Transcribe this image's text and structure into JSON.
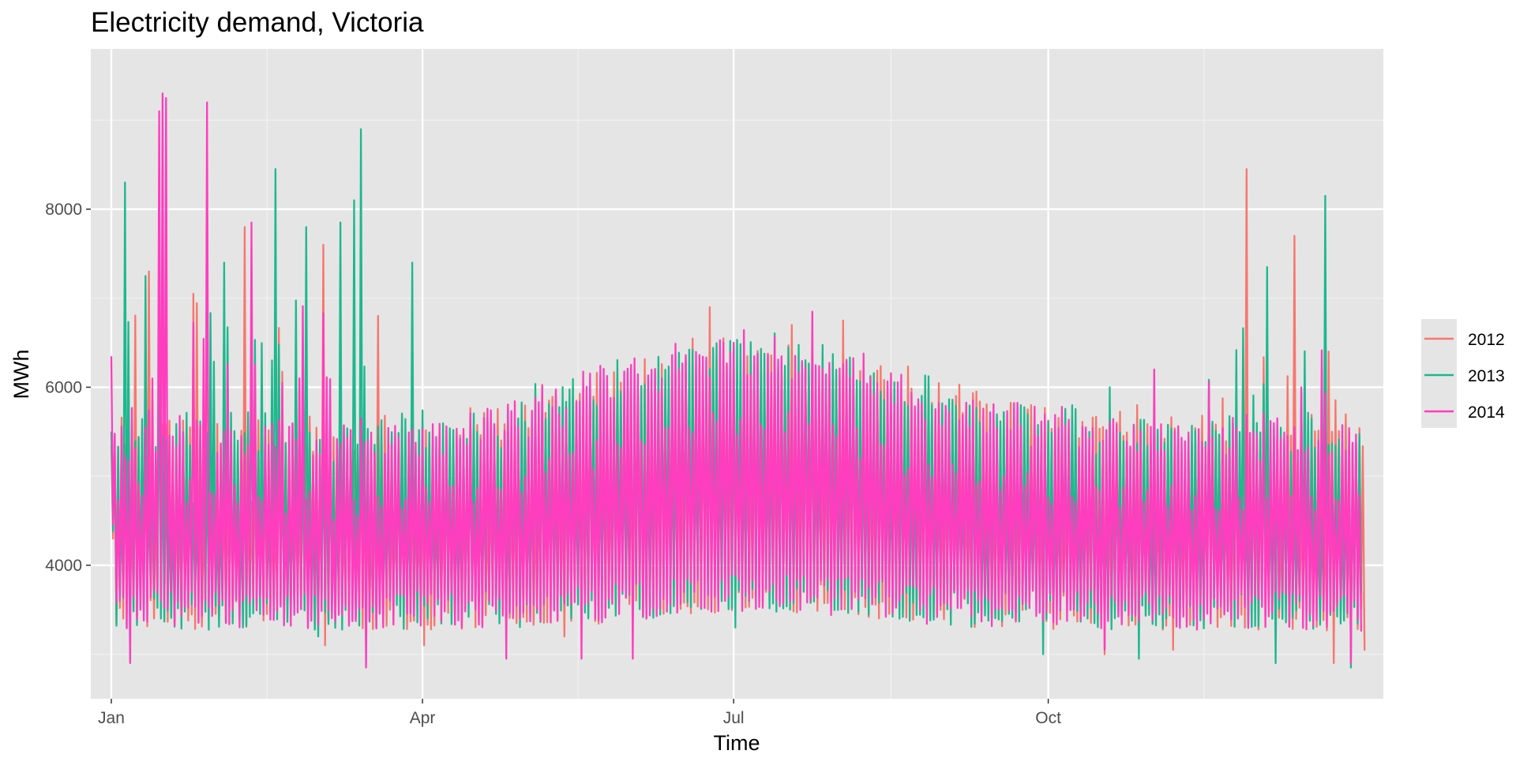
{
  "chart_data": {
    "type": "line",
    "title": "Electricity demand, Victoria",
    "xlabel": "Time",
    "ylabel": "MWh",
    "x_axis": {
      "unit": "day of year",
      "range": [
        -6,
        372
      ],
      "ticks": [
        {
          "label": "Jan",
          "value": 0
        },
        {
          "label": "Apr",
          "value": 91
        },
        {
          "label": "Jul",
          "value": 182
        },
        {
          "label": "Oct",
          "value": 274
        }
      ],
      "minor_breaks": [
        45.5,
        136.5,
        228,
        319.5
      ]
    },
    "y_axis": {
      "range": [
        2500,
        9800
      ],
      "ticks": [
        4000,
        6000,
        8000
      ],
      "minor_breaks": [
        3000,
        5000,
        7000,
        9000
      ]
    },
    "grid": true,
    "legend": {
      "position": "right",
      "entries": [
        "2012",
        "2013",
        "2014"
      ]
    },
    "series": [
      {
        "name": "2012",
        "color": "#F8766D",
        "frequency": "daily (daily min and max shown)",
        "points_per_day": 2,
        "spikes": [
          [
            11,
            7300
          ],
          [
            24,
            7050
          ],
          [
            28,
            8050
          ],
          [
            39,
            7800
          ],
          [
            62,
            7600
          ],
          [
            78,
            6800
          ],
          [
            175,
            6900
          ],
          [
            199,
            6700
          ],
          [
            214,
            6750
          ],
          [
            300,
            5800
          ],
          [
            332,
            8450
          ],
          [
            346,
            7700
          ],
          [
            356,
            6400
          ]
        ],
        "lows": [
          [
            3,
            3400
          ],
          [
            62,
            3100
          ],
          [
            91,
            3100
          ],
          [
            132,
            3200
          ],
          [
            290,
            3000
          ],
          [
            310,
            3050
          ],
          [
            357,
            2900
          ],
          [
            366,
            3050
          ]
        ],
        "end": [
          366,
          3700
        ]
      },
      {
        "name": "2013",
        "color": "#1DB88E",
        "frequency": "daily (daily min and max shown)",
        "points_per_day": 2,
        "spikes": [
          [
            4,
            8300
          ],
          [
            10,
            7250
          ],
          [
            33,
            7400
          ],
          [
            48,
            8450
          ],
          [
            57,
            7800
          ],
          [
            67,
            7850
          ],
          [
            71,
            8100
          ],
          [
            73,
            8900
          ],
          [
            88,
            7400
          ],
          [
            292,
            6000
          ],
          [
            338,
            7350
          ],
          [
            355,
            8150
          ]
        ],
        "lows": [
          [
            14,
            3400
          ],
          [
            60,
            3200
          ],
          [
            182,
            3300
          ],
          [
            272,
            3000
          ],
          [
            300,
            2950
          ],
          [
            340,
            2900
          ],
          [
            362,
            2850
          ]
        ],
        "end": [
          365,
          3800
        ]
      },
      {
        "name": "2014",
        "color": "#FF3DBE",
        "frequency": "daily (daily min and max shown)",
        "points_per_day": 2,
        "spikes": [
          [
            14,
            9100
          ],
          [
            15,
            9300
          ],
          [
            16,
            9250
          ],
          [
            28,
            9200
          ],
          [
            41,
            7850
          ],
          [
            55,
            6100
          ],
          [
            182,
            6500
          ],
          [
            205,
            6850
          ],
          [
            305,
            6200
          ],
          [
            348,
            6000
          ]
        ],
        "lows": [
          [
            5,
            2900
          ],
          [
            74,
            2850
          ],
          [
            115,
            2950
          ],
          [
            137,
            2950
          ],
          [
            152,
            2950
          ],
          [
            290,
            3050
          ],
          [
            362,
            2900
          ]
        ],
        "end": [
          365,
          3900
        ]
      }
    ]
  }
}
